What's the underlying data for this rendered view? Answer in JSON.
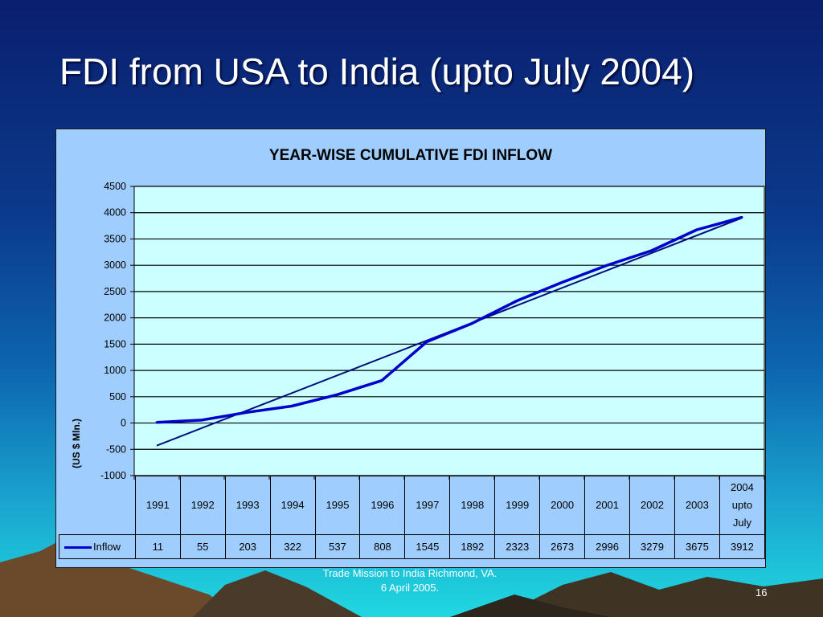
{
  "slide": {
    "title": "FDI from USA to India (upto July 2004)",
    "footer_line1": "Trade Mission to India Richmond, VA.",
    "footer_line2": "6 April 2005.",
    "page_number": "16"
  },
  "colors": {
    "series_line": "#0000cc",
    "trend_line": "#00107a",
    "plot_background": "#ccffff",
    "chart_background": "#9fcdfd"
  },
  "chart_data": {
    "type": "line",
    "title": "YEAR-WISE CUMULATIVE FDI INFLOW",
    "ylabel": "(US $ Mln.)",
    "xlabel": "",
    "ylim": [
      -1000,
      4500
    ],
    "yticks": [
      4500,
      4000,
      3500,
      3000,
      2500,
      2000,
      1500,
      1000,
      500,
      0,
      -500,
      -1000
    ],
    "grid": true,
    "categories": [
      "1991",
      "1992",
      "1993",
      "1994",
      "1995",
      "1996",
      "1997",
      "1998",
      "1999",
      "2000",
      "2001",
      "2002",
      "2003",
      "2004 upto July"
    ],
    "series": [
      {
        "name": "Inflow",
        "values": [
          11,
          55,
          203,
          322,
          537,
          808,
          1545,
          1892,
          2323,
          2673,
          2996,
          3279,
          3675,
          3912
        ]
      }
    ],
    "trendline": {
      "start": -430,
      "end": 3900
    },
    "data_table": true
  }
}
